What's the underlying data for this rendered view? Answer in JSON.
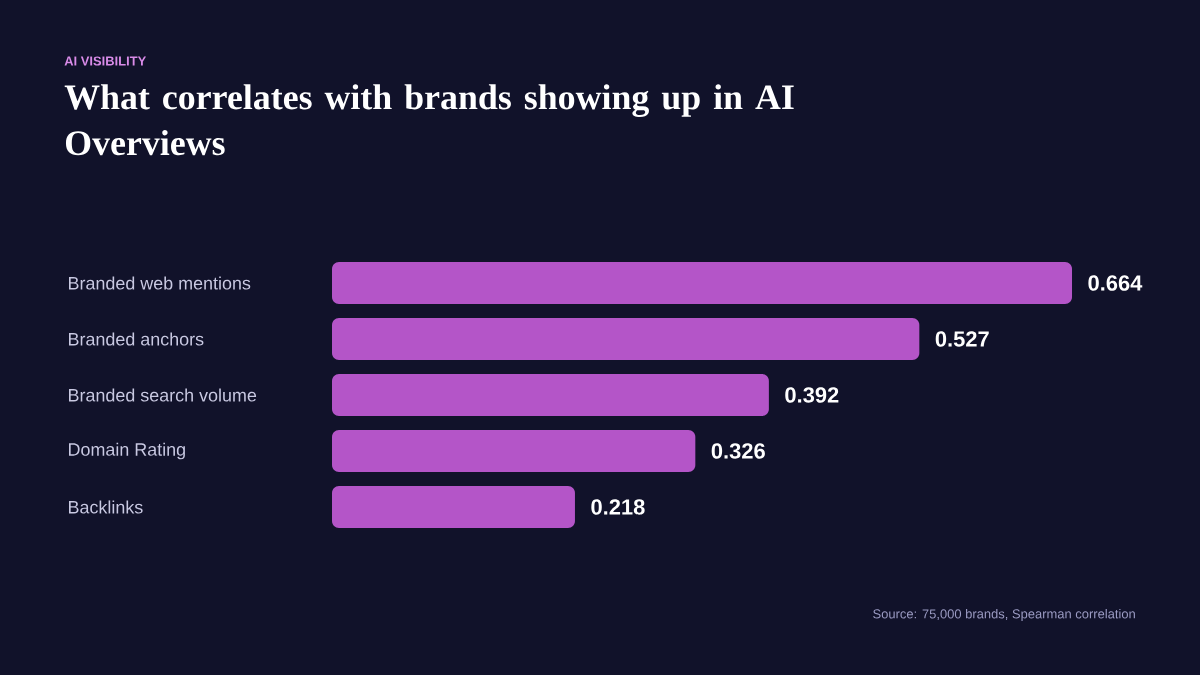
{
  "chart_data": {
    "type": "bar",
    "orientation": "horizontal",
    "subtitle": "AI VISIBILITY",
    "title": "What correlates with brands showing up in AI Overviews",
    "categories": [
      "Branded web mentions",
      "Branded anchors",
      "Branded search volume",
      "Domain Rating",
      "Backlinks"
    ],
    "values": [
      0.664,
      0.527,
      0.392,
      0.326,
      0.218
    ],
    "color": "#b455c8",
    "data_labels": true,
    "annotations": [
      "Source: 75,000 brands, Spearman correlation"
    ]
  }
}
